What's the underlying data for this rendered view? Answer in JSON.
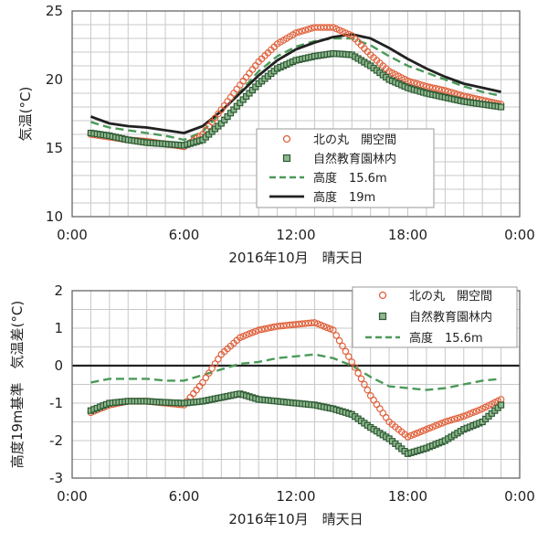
{
  "chart_data": [
    {
      "type": "line",
      "xlabel": "2016年10月　晴天日",
      "ylabel": "気温(°C)",
      "ylim": [
        10,
        25
      ],
      "y_ticks": [
        "10",
        "15",
        "20",
        "25"
      ],
      "xlim": [
        0,
        24
      ],
      "x_ticks": [
        "0:00",
        "6:00",
        "12:00",
        "18:00",
        "0:00"
      ],
      "grid": true,
      "legend_position": "center-right",
      "x": [
        1,
        2,
        3,
        4,
        5,
        6,
        7,
        8,
        9,
        10,
        11,
        12,
        13,
        14,
        15,
        16,
        17,
        18,
        19,
        20,
        21,
        22,
        23
      ],
      "series": [
        {
          "name": "北の丸　開空間",
          "marker": "circle",
          "color": "#e0603a",
          "values": [
            16.0,
            15.8,
            15.6,
            15.5,
            15.3,
            15.1,
            16.0,
            17.8,
            19.6,
            21.3,
            22.6,
            23.4,
            23.8,
            23.8,
            23.2,
            21.8,
            20.6,
            19.9,
            19.5,
            19.2,
            18.8,
            18.5,
            18.2
          ]
        },
        {
          "name": "自然教育園林内",
          "marker": "square",
          "color": "#2e5a34",
          "values": [
            16.1,
            15.9,
            15.6,
            15.4,
            15.3,
            15.2,
            15.6,
            16.8,
            18.3,
            19.7,
            20.8,
            21.4,
            21.7,
            21.9,
            21.8,
            21.0,
            20.0,
            19.4,
            19.0,
            18.7,
            18.4,
            18.2,
            18.0
          ]
        },
        {
          "name": "高度　15.6m",
          "style": "dashed",
          "color": "#4a9a58",
          "values": [
            16.9,
            16.5,
            16.3,
            16.1,
            15.9,
            15.6,
            16.2,
            17.6,
            19.1,
            20.6,
            21.7,
            22.4,
            22.8,
            23.0,
            23.0,
            22.5,
            21.7,
            21.0,
            20.5,
            20.0,
            19.5,
            19.1,
            18.8
          ]
        },
        {
          "name": "高度　19m",
          "style": "solid",
          "color": "#222222",
          "values": [
            17.3,
            16.8,
            16.6,
            16.5,
            16.3,
            16.1,
            16.6,
            17.7,
            19.0,
            20.3,
            21.4,
            22.2,
            22.7,
            23.1,
            23.3,
            23.0,
            22.3,
            21.5,
            20.8,
            20.2,
            19.7,
            19.4,
            19.1
          ]
        }
      ]
    },
    {
      "type": "line",
      "xlabel": "2016年10月　晴天日",
      "ylabel": "高度19m基準　気温差(°C)",
      "ylim": [
        -3,
        2
      ],
      "y_ticks": [
        "-3",
        "-2",
        "-1",
        "0",
        "1",
        "2"
      ],
      "xlim": [
        0,
        24
      ],
      "x_ticks": [
        "0:00",
        "6:00",
        "12:00",
        "18:00",
        "0:00"
      ],
      "grid": true,
      "legend_position": "top-right",
      "x": [
        1,
        2,
        3,
        4,
        5,
        6,
        7,
        8,
        9,
        10,
        11,
        12,
        13,
        14,
        15,
        16,
        17,
        18,
        19,
        20,
        21,
        22,
        23
      ],
      "series": [
        {
          "name": "北の丸　開空間",
          "marker": "circle",
          "color": "#e0603a",
          "values": [
            -1.25,
            -1.05,
            -0.95,
            -0.95,
            -1.0,
            -1.05,
            -0.45,
            0.3,
            0.75,
            0.95,
            1.05,
            1.1,
            1.15,
            0.95,
            0.1,
            -0.8,
            -1.5,
            -1.9,
            -1.7,
            -1.5,
            -1.35,
            -1.15,
            -0.9
          ]
        },
        {
          "name": "自然教育園林内",
          "marker": "square",
          "color": "#2e5a34",
          "values": [
            -1.2,
            -1.0,
            -0.95,
            -0.95,
            -0.98,
            -1.0,
            -0.95,
            -0.85,
            -0.75,
            -0.9,
            -0.95,
            -1.0,
            -1.05,
            -1.15,
            -1.3,
            -1.65,
            -1.95,
            -2.35,
            -2.2,
            -2.0,
            -1.7,
            -1.5,
            -1.05
          ]
        },
        {
          "name": "高度　15.6m",
          "style": "dashed",
          "color": "#4a9a58",
          "values": [
            -0.45,
            -0.35,
            -0.35,
            -0.35,
            -0.4,
            -0.4,
            -0.25,
            -0.1,
            0.05,
            0.1,
            0.2,
            0.25,
            0.3,
            0.2,
            0.0,
            -0.3,
            -0.55,
            -0.6,
            -0.65,
            -0.6,
            -0.5,
            -0.4,
            -0.35
          ]
        }
      ]
    }
  ]
}
